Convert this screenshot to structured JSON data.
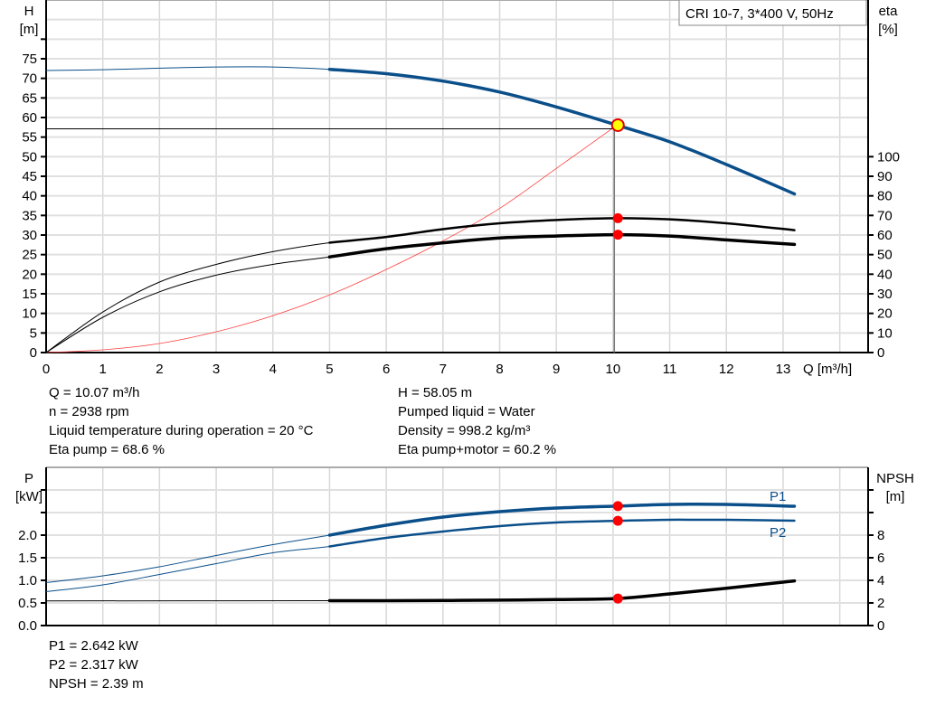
{
  "chart_data": [
    {
      "type": "line",
      "title": "CRI 10-7, 3*400 V, 50Hz",
      "xlabel": "Q [m³/h]",
      "ylabel": [
        "H",
        "[m]"
      ],
      "y2label": [
        "eta",
        "[%]"
      ],
      "xlim": [
        0,
        14.5
      ],
      "ylim": [
        0,
        90
      ],
      "y2lim": [
        0,
        180
      ],
      "x_ticks": [
        0,
        1,
        2,
        3,
        4,
        5,
        6,
        7,
        8,
        9,
        10,
        11,
        12,
        13
      ],
      "y_ticks": [
        0,
        5,
        10,
        15,
        20,
        25,
        30,
        35,
        40,
        45,
        50,
        55,
        60,
        65,
        70,
        75
      ],
      "y2_ticks": [
        0,
        10,
        20,
        30,
        40,
        50,
        60,
        70,
        80,
        90,
        100
      ],
      "grid": true,
      "series": [
        {
          "key": "H",
          "axis": "left",
          "color": "#0b4f8a",
          "x": [
            0,
            1,
            2,
            3,
            4,
            5,
            6,
            7,
            8,
            9,
            10.07,
            11,
            12,
            13.2
          ],
          "y": [
            72,
            72.2,
            72.6,
            72.9,
            72.9,
            72.3,
            71.2,
            69.3,
            66.5,
            62.7,
            58.05,
            53.8,
            48,
            40.5
          ]
        },
        {
          "key": "system",
          "axis": "left",
          "color": "#ff4040",
          "x": [
            0,
            1,
            2,
            3,
            4,
            5,
            6,
            7,
            8,
            9,
            10.07
          ],
          "y": [
            0,
            0.7,
            2.3,
            5.3,
            9.4,
            14.7,
            21.2,
            28.5,
            36.8,
            47,
            58.05
          ]
        },
        {
          "key": "eta_pump",
          "axis": "right",
          "color": "#000000",
          "x": [
            0,
            1,
            2,
            3,
            4,
            5,
            6,
            7,
            8,
            9,
            10.07,
            11,
            12,
            13.2
          ],
          "y": [
            0,
            20.7,
            36,
            45,
            51.5,
            56.1,
            59,
            63,
            66,
            67.7,
            68.6,
            68,
            66,
            62.5
          ]
        },
        {
          "key": "eta_pump_motor",
          "axis": "right",
          "color": "#000000",
          "x": [
            0,
            1,
            2,
            3,
            4,
            5,
            6,
            7,
            8,
            9,
            10.07,
            11,
            12,
            13.2
          ],
          "y": [
            0,
            18,
            31,
            39.5,
            45,
            48.8,
            53,
            56,
            58.5,
            59.5,
            60.2,
            59.5,
            57.5,
            55.2
          ]
        }
      ],
      "operating_point": {
        "Q": 10.07,
        "H": 58.05,
        "eta_pump": 68.6,
        "eta_pump_motor": 60.2
      }
    },
    {
      "type": "line",
      "ylabel": [
        "P",
        "[kW]"
      ],
      "y2label": [
        "NPSH",
        "[m]"
      ],
      "xlim": [
        0,
        14.5
      ],
      "ylim": [
        0,
        3.5
      ],
      "y2lim": [
        0,
        14
      ],
      "y_ticks": [
        "0.0",
        "0.5",
        "1.0",
        "1.5",
        "2.0"
      ],
      "y2_ticks": [
        "0",
        "2",
        "4",
        "6",
        "8"
      ],
      "grid": true,
      "series": [
        {
          "name": "P1",
          "axis": "left",
          "color": "#0b4f8a",
          "x": [
            0,
            1,
            2,
            3,
            4,
            5,
            6,
            7,
            8,
            9,
            10.07,
            11,
            12,
            13.2
          ],
          "y": [
            0.95,
            1.1,
            1.3,
            1.55,
            1.79,
            2.0,
            2.22,
            2.4,
            2.52,
            2.6,
            2.642,
            2.68,
            2.68,
            2.64
          ]
        },
        {
          "name": "P2",
          "axis": "left",
          "color": "#0b4f8a",
          "x": [
            0,
            1,
            2,
            3,
            4,
            5,
            6,
            7,
            8,
            9,
            10.07,
            11,
            12,
            13.2
          ],
          "y": [
            0.75,
            0.9,
            1.13,
            1.37,
            1.61,
            1.75,
            1.94,
            2.08,
            2.2,
            2.28,
            2.317,
            2.34,
            2.34,
            2.32
          ]
        },
        {
          "key": "NPSH",
          "axis": "right",
          "color": "#000000",
          "x": [
            0,
            5,
            6,
            7,
            8,
            9,
            10.07,
            11,
            12,
            13.2
          ],
          "y": [
            2.18,
            2.2,
            2.2,
            2.22,
            2.25,
            2.3,
            2.39,
            2.8,
            3.3,
            3.95
          ]
        }
      ],
      "operating_point": {
        "Q": 10.07,
        "P1": 2.642,
        "P2": 2.317,
        "NPSH": 2.39
      }
    }
  ],
  "info_top_left": [
    "Q = 10.07 m³/h",
    "n = 2938 rpm",
    "Liquid temperature during operation = 20 °C",
    "Eta pump = 68.6 %"
  ],
  "info_top_right": [
    "H = 58.05 m",
    "Pumped liquid = Water",
    "Density = 998.2 kg/m³",
    "Eta pump+motor = 60.2 %"
  ],
  "info_bottom": [
    "P1 = 2.642 kW",
    "P2 = 2.317 kW",
    "NPSH = 2.39 m"
  ],
  "colors": {
    "curve_blue": "#0b4f8a",
    "marker_red": "#ff0000",
    "marker_yellow": "#ffff00",
    "grid": "#d8d8d8"
  }
}
